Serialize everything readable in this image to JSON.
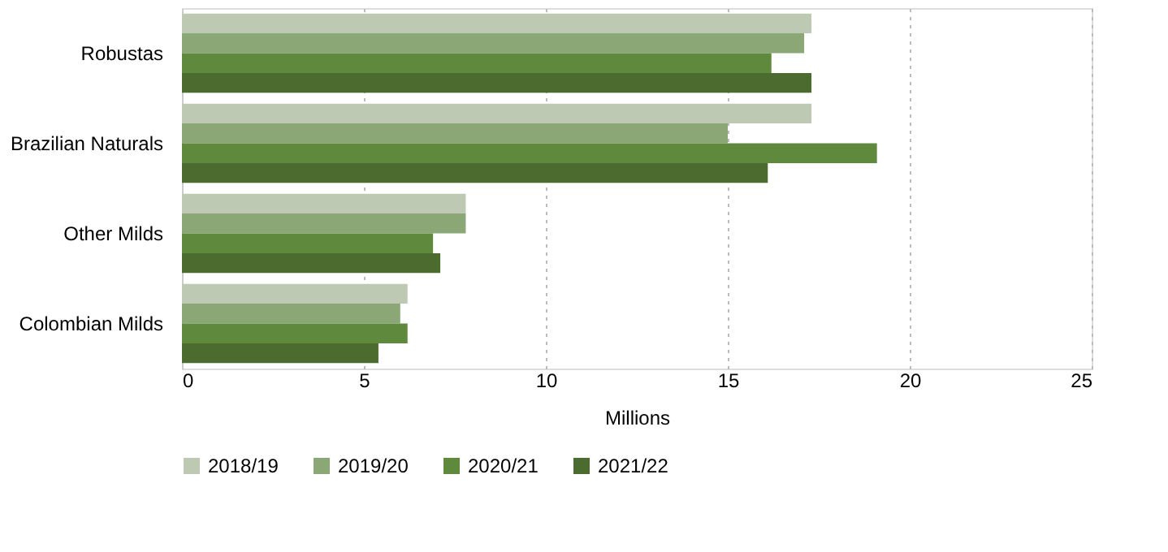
{
  "chart_data": {
    "type": "bar",
    "orientation": "horizontal",
    "xlabel": "Millions",
    "categories": [
      "Robustas",
      "Brazilian Naturals",
      "Other Milds",
      "Colombian Milds"
    ],
    "series": [
      {
        "name": "2018/19",
        "color": "#bdc9b3",
        "values": [
          17.3,
          17.3,
          7.8,
          6.2
        ]
      },
      {
        "name": "2019/20",
        "color": "#8ba776",
        "values": [
          17.1,
          15.0,
          7.8,
          6.0
        ]
      },
      {
        "name": "2020/21",
        "color": "#5f8a3e",
        "values": [
          16.2,
          19.1,
          6.9,
          6.2
        ]
      },
      {
        "name": "2021/22",
        "color": "#4c6b2e",
        "values": [
          17.3,
          16.1,
          7.1,
          5.4
        ]
      }
    ],
    "xlim": [
      0,
      25
    ],
    "xticks": [
      0,
      5,
      10,
      15,
      20,
      25
    ],
    "grid": "x",
    "legend": "bottom"
  }
}
